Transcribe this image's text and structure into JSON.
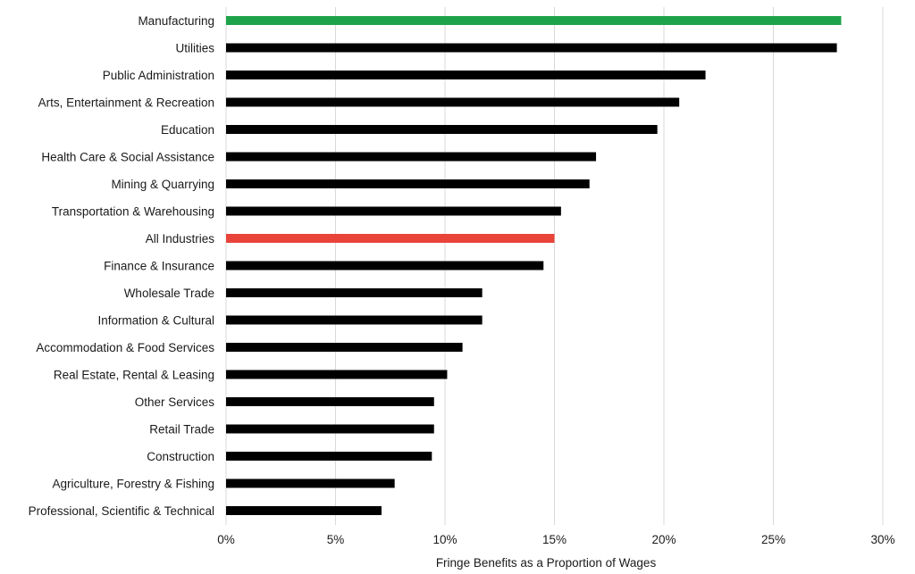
{
  "chart_data": {
    "type": "bar",
    "orientation": "horizontal",
    "title": "",
    "xlabel": "Fringe Benefits as a Proportion of Wages",
    "ylabel": "",
    "xlim": [
      0,
      30
    ],
    "x_ticks": [
      0,
      5,
      10,
      15,
      20,
      25,
      30
    ],
    "x_tick_labels": [
      "0%",
      "5%",
      "10%",
      "15%",
      "20%",
      "25%",
      "30%"
    ],
    "grid": "vertical",
    "legend": "none",
    "default_color": "#000000",
    "categories": [
      "Manufacturing",
      "Utilities",
      "Public Administration",
      "Arts, Entertainment & Recreation",
      "Education",
      "Health Care & Social Assistance",
      "Mining & Quarrying",
      "Transportation & Warehousing",
      "All Industries",
      "Finance & Insurance",
      "Wholesale Trade",
      "Information & Cultural",
      "Accommodation & Food Services",
      "Real Estate, Rental & Leasing",
      "Other Services",
      "Retail Trade",
      "Construction",
      "Agriculture, Forestry & Fishing",
      "Professional, Scientific & Technical"
    ],
    "values": [
      28.1,
      27.9,
      21.9,
      20.7,
      19.7,
      16.9,
      16.6,
      15.3,
      15.0,
      14.5,
      11.7,
      11.7,
      10.8,
      10.1,
      9.5,
      9.5,
      9.4,
      7.7,
      7.1
    ],
    "highlight": [
      {
        "category": "Manufacturing",
        "color": "#1fa34a"
      },
      {
        "category": "All Industries",
        "color": "#e8443a"
      }
    ]
  }
}
